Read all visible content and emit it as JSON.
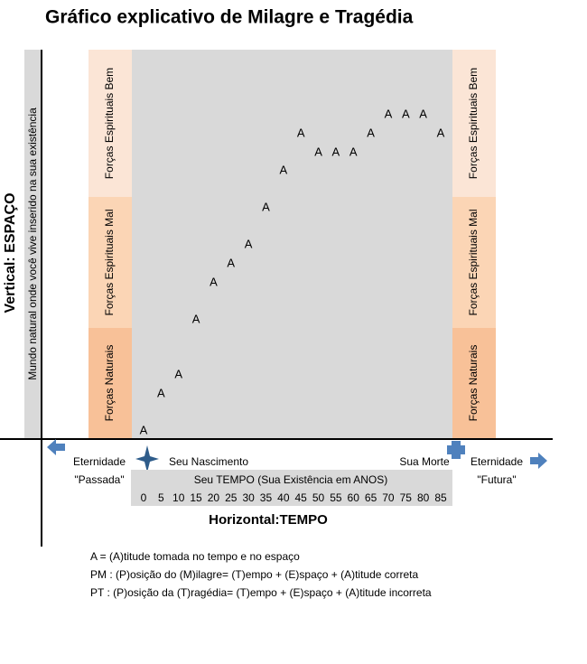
{
  "title": "Gráfico explicativo de Milagre e Tragédia",
  "vertical_axis": {
    "label": "Vertical: ESPAÇO",
    "strip": "Mundo natural onde você vive inserido na sua existência"
  },
  "horizontal_axis": {
    "label": "Horizontal:TEMPO",
    "caption": "Seu TEMPO (Sua Existência em ANOS)",
    "ticks": [
      0,
      5,
      10,
      15,
      20,
      25,
      30,
      35,
      40,
      45,
      50,
      55,
      60,
      65,
      70,
      75,
      80,
      85
    ]
  },
  "bands": [
    "Forças Espirituais Bem",
    "Forças Espirituais Mal",
    "Forças Naturais"
  ],
  "points": {
    "label": "A",
    "x": [
      0,
      5,
      10,
      15,
      20,
      25,
      30,
      35,
      40,
      45,
      50,
      55,
      60,
      65,
      70,
      75,
      80,
      85
    ]
  },
  "markers": {
    "past": [
      "Eternidade",
      "\"Passada\""
    ],
    "birth": "Seu Nascimento",
    "death": "Sua Morte",
    "future": [
      "Eternidade",
      "\"Futura\""
    ]
  },
  "legend": [
    "A = (A)titude tomada no tempo e no espaço",
    "PM : (P)osição do (M)ilagre= (T)empo + (E)spaço + (A)titude correta",
    "PT : (P)osição da (T)ragédia= (T)empo + (E)spaço + (A)titude incorreta"
  ]
}
